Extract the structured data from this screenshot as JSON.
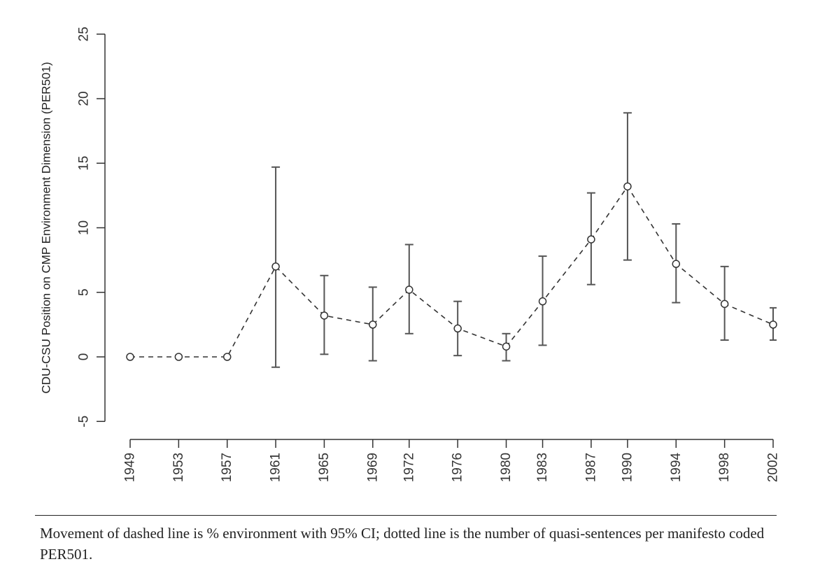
{
  "chart_data": {
    "type": "line",
    "ylabel": "CDU-CSU Position on CMP Environment Dimension (PER501)",
    "xlabel": "",
    "categories": [
      "1949",
      "1953",
      "1957",
      "1961",
      "1965",
      "1969",
      "1972",
      "1976",
      "1980",
      "1983",
      "1987",
      "1990",
      "1994",
      "1998",
      "2002"
    ],
    "x": [
      1949,
      1953,
      1957,
      1961,
      1965,
      1969,
      1972,
      1976,
      1980,
      1983,
      1987,
      1990,
      1994,
      1998,
      2002
    ],
    "y_ticks": [
      "-5",
      "0",
      "5",
      "10",
      "15",
      "20",
      "25"
    ],
    "ylim": [
      -5,
      25
    ],
    "xlim": [
      1949,
      2002
    ],
    "line_style": "dashed",
    "marker": "open-circle",
    "series": [
      {
        "values": [
          0,
          0,
          0,
          7.0,
          3.2,
          2.5,
          5.2,
          2.2,
          0.8,
          4.3,
          9.1,
          13.2,
          7.2,
          4.1,
          2.5
        ],
        "ci_lower": [
          null,
          null,
          null,
          -0.8,
          0.2,
          -0.3,
          1.8,
          0.1,
          -0.3,
          0.9,
          5.6,
          7.5,
          4.2,
          1.3,
          1.3
        ],
        "ci_upper": [
          null,
          null,
          null,
          14.7,
          6.3,
          5.4,
          8.7,
          4.3,
          1.8,
          7.8,
          12.7,
          18.9,
          10.3,
          7.0,
          3.8
        ]
      }
    ],
    "grid": false,
    "colors": {
      "line": "#333333",
      "errorbar": "#555555",
      "axis": "#333333"
    }
  },
  "caption": {
    "text": "Movement of dashed line is % environment with 95% CI; dotted line is the number of quasi-sentences per manifesto coded PER501."
  }
}
